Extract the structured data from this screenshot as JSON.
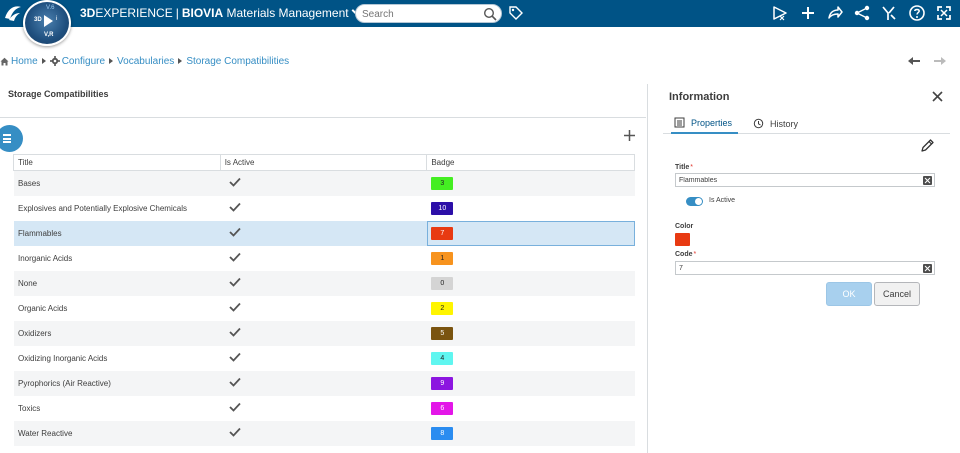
{
  "topbar": {
    "logo": "3DS",
    "compass": {
      "top": "V.6",
      "left": "3D",
      "right": "i",
      "bottom": "V,R"
    },
    "brand_3d": "3D",
    "brand_experience": "EXPERIENCE",
    "brand_sep": "|",
    "brand_biovia": "BIOVIA",
    "brand_app": "Materials Management",
    "search_placeholder": "Search",
    "icons": [
      "tag-icon",
      "share-arrow-icon",
      "plus-icon",
      "forward-icon",
      "network-share-icon",
      "tools-icon",
      "help-icon",
      "fullscreen-icon"
    ]
  },
  "breadcrumb": {
    "home": "Home",
    "configure": "Configure",
    "vocabularies": "Vocabularies",
    "current": "Storage Compatibilities"
  },
  "list": {
    "title": "Storage Compatibilities",
    "columns": [
      "Title",
      "Is Active",
      "Badge"
    ],
    "rows": [
      {
        "title": "Bases",
        "active": true,
        "badge": "3",
        "color": "#44ee22",
        "text": "#222222"
      },
      {
        "title": "Explosives and Potentially Explosive Chemicals",
        "active": true,
        "badge": "10",
        "color": "#2c0fa8",
        "text": "#ffffff"
      },
      {
        "title": "Flammables",
        "active": true,
        "badge": "7",
        "color": "#e83a12",
        "text": "#ffffff",
        "selected": true
      },
      {
        "title": "Inorganic Acids",
        "active": true,
        "badge": "1",
        "color": "#f7931e",
        "text": "#222222"
      },
      {
        "title": "None",
        "active": true,
        "badge": "0",
        "color": "#d4d4d4",
        "text": "#222222"
      },
      {
        "title": "Organic Acids",
        "active": true,
        "badge": "2",
        "color": "#fff500",
        "text": "#222222"
      },
      {
        "title": "Oxidizers",
        "active": true,
        "badge": "5",
        "color": "#7a5410",
        "text": "#ffffff"
      },
      {
        "title": "Oxidizing Inorganic Acids",
        "active": true,
        "badge": "4",
        "color": "#5ff6f0",
        "text": "#222222"
      },
      {
        "title": "Pyrophorics (Air Reactive)",
        "active": true,
        "badge": "9",
        "color": "#8c16e0",
        "text": "#ffffff"
      },
      {
        "title": "Toxics",
        "active": true,
        "badge": "6",
        "color": "#e316e8",
        "text": "#ffffff"
      },
      {
        "title": "Water Reactive",
        "active": true,
        "badge": "8",
        "color": "#2a8cf0",
        "text": "#ffffff"
      }
    ]
  },
  "info": {
    "title": "Information",
    "tab_properties": "Properties",
    "tab_history": "History",
    "title_label": "Title",
    "title_value": "Flammables",
    "required_mark": "*",
    "is_active_label": "Is Active",
    "is_active": true,
    "color_label": "Color",
    "color_value": "#e83a12",
    "code_label": "Code",
    "code_value": "7",
    "ok_label": "OK",
    "cancel_label": "Cancel"
  },
  "colors": {
    "topbar": "#005386",
    "accent": "#368ec4",
    "selected_row": "#d5e7f5"
  }
}
